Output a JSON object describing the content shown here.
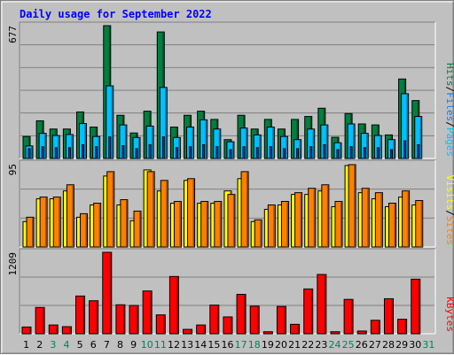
{
  "chart_data": {
    "type": "bar",
    "title": "Daily usage for September 2022",
    "categories": [
      "1",
      "2",
      "3",
      "4",
      "5",
      "6",
      "7",
      "8",
      "9",
      "10",
      "11",
      "12",
      "13",
      "14",
      "15",
      "16",
      "17",
      "18",
      "19",
      "20",
      "21",
      "22",
      "23",
      "24",
      "25",
      "26",
      "27",
      "28",
      "29",
      "30",
      "31"
    ],
    "weekend_days": [
      3,
      4,
      10,
      11,
      17,
      18,
      24,
      25,
      31
    ],
    "colors": {
      "hits": "#008040",
      "files": "#00c0ff",
      "visits": "#ffff00",
      "sites": "#ff8000",
      "kbytes": "#ff0000",
      "title": "#0000ff",
      "background": "#c0c0c0",
      "weekday_label": "#000000",
      "weekend_label": "#00805c"
    },
    "panels": [
      {
        "id": "hits-files",
        "y_max_label": "677",
        "ylim": [
          0,
          677
        ],
        "legend": [
          "Pages",
          "Files",
          "Hits"
        ],
        "legend_colors": [
          "#00c0ff",
          "#0080ff",
          "#008040"
        ],
        "series": [
          {
            "name": "Hits",
            "color": "#008040",
            "values": [
              112,
              192,
              150,
              150,
              237,
              160,
              677,
              220,
              130,
              241,
              645,
              160,
              220,
              241,
              199,
              96,
              220,
              150,
              199,
              150,
              199,
              214,
              256,
              108,
              229,
              176,
              171,
              120,
              405,
              295,
              0
            ]
          },
          {
            "name": "Files",
            "color": "#00c0ff",
            "values": [
              64,
              128,
              117,
              122,
              178,
              112,
              370,
              171,
              107,
              165,
              362,
              107,
              160,
              197,
              150,
              85,
              155,
              120,
              160,
              112,
              96,
              150,
              171,
              80,
              176,
              128,
              117,
              96,
              330,
              214,
              0
            ]
          },
          {
            "name": "Pages",
            "color": "#0060ff",
            "values": [
              50,
              60,
              55,
              55,
              70,
              60,
              110,
              65,
              50,
              70,
              110,
              55,
              60,
              70,
              60,
              45,
              60,
              55,
              60,
              50,
              50,
              60,
              70,
              45,
              60,
              55,
              55,
              45,
              90,
              70,
              0
            ]
          }
        ]
      },
      {
        "id": "visits-sites",
        "y_max_label": "95",
        "ylim": [
          0,
          95
        ],
        "legend": [
          "Sites",
          "Visits"
        ],
        "legend_colors": [
          "#ff8000",
          "#ffff00"
        ],
        "series": [
          {
            "name": "Visits",
            "color": "#ffff00",
            "values": [
              29,
              55,
              55,
              64,
              34,
              48,
              81,
              48,
              30,
              88,
              64,
              50,
              76,
              50,
              50,
              64,
              78,
              29,
              43,
              48,
              60,
              60,
              64,
              46,
              93,
              62,
              55,
              46,
              57,
              48,
              0
            ]
          },
          {
            "name": "Sites",
            "color": "#ff8000",
            "values": [
              34,
              57,
              57,
              71,
              38,
              50,
              86,
              54,
              41,
              86,
              76,
              52,
              78,
              52,
              52,
              60,
              86,
              31,
              48,
              52,
              62,
              67,
              71,
              52,
              94,
              67,
              62,
              50,
              64,
              53,
              0
            ]
          }
        ]
      },
      {
        "id": "kbytes",
        "y_max_label": "1209",
        "ylim": [
          0,
          1209
        ],
        "legend": [
          "KBytes"
        ],
        "legend_colors": [
          "#ff0000"
        ],
        "series": [
          {
            "name": "KBytes",
            "color": "#ff0000",
            "values": [
              100,
              390,
              130,
              105,
              560,
              490,
              1209,
              430,
              420,
              635,
              280,
              850,
              65,
              130,
              425,
              250,
              585,
              410,
              30,
              405,
              140,
              665,
              880,
              30,
              510,
              40,
              200,
              520,
              215,
              810,
              0
            ]
          }
        ]
      }
    ]
  }
}
